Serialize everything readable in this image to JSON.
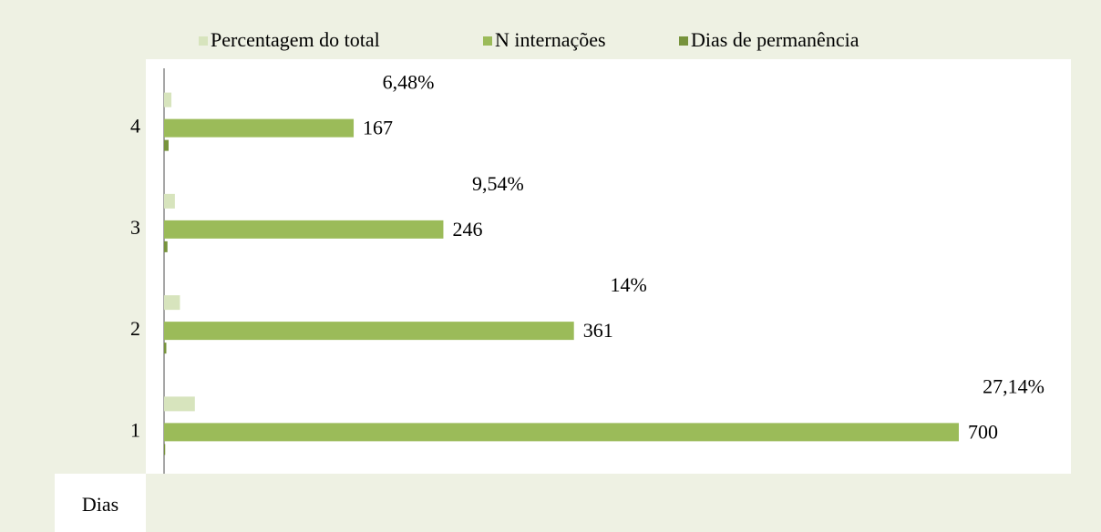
{
  "chart_data": {
    "type": "bar",
    "orientation": "horizontal",
    "categories": [
      "1",
      "2",
      "3",
      "4"
    ],
    "series": [
      {
        "name": "Percentagem do total",
        "color": "#d7e4bd",
        "values": [
          27.14,
          14,
          9.54,
          6.48
        ],
        "value_labels": [
          "27,14%",
          "14%",
          "9,54%",
          "6,48%"
        ]
      },
      {
        "name": "N internações",
        "color": "#9bbb59",
        "values": [
          700,
          361,
          246,
          167
        ]
      },
      {
        "name": "Dias de permanência",
        "color": "#77933c",
        "values": [
          1,
          2,
          3,
          4
        ]
      }
    ],
    "xlim": [
      0,
      700
    ],
    "axis_label": "Dias",
    "legend": "top"
  }
}
